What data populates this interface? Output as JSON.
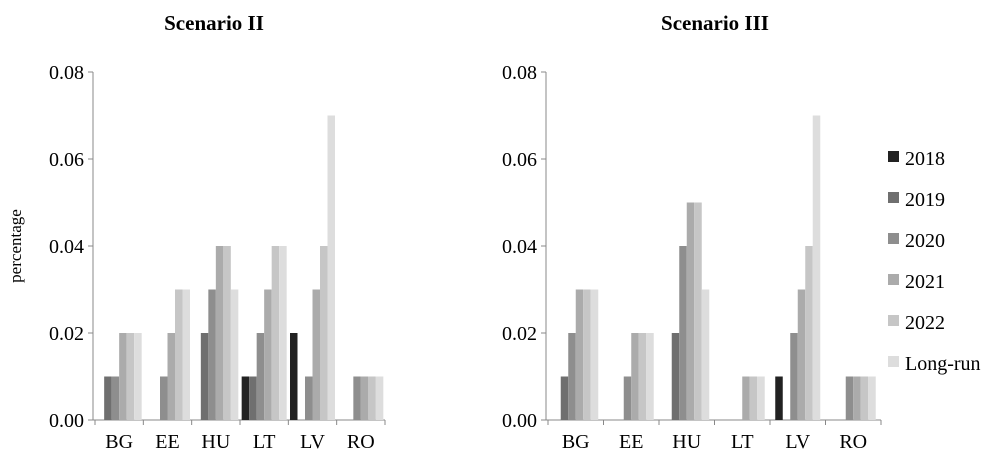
{
  "chart_data": [
    {
      "type": "bar",
      "title": "Scenario II",
      "xlabel": "",
      "ylabel": "percentage",
      "ylim": [
        0,
        0.08
      ],
      "yticks": [
        "0.00",
        "0.02",
        "0.04",
        "0.06",
        "0.08"
      ],
      "categories": [
        "BG",
        "EE",
        "HU",
        "LT",
        "LV",
        "RO"
      ],
      "grid": false,
      "series": [
        {
          "name": "2018",
          "color": "#222222",
          "values": [
            0,
            0,
            0,
            0.01,
            0.02,
            0
          ]
        },
        {
          "name": "2019",
          "color": "#6f6f6f",
          "values": [
            0.01,
            0,
            0.02,
            0.01,
            0,
            0
          ]
        },
        {
          "name": "2020",
          "color": "#8e8e8e",
          "values": [
            0.01,
            0.01,
            0.03,
            0.02,
            0.01,
            0.01
          ]
        },
        {
          "name": "2021",
          "color": "#ababab",
          "values": [
            0.02,
            0.02,
            0.04,
            0.03,
            0.03,
            0.01
          ]
        },
        {
          "name": "2022",
          "color": "#c6c6c6",
          "values": [
            0.02,
            0.03,
            0.04,
            0.04,
            0.04,
            0.01
          ]
        },
        {
          "name": "Long-run",
          "color": "#dddddd",
          "values": [
            0.02,
            0.03,
            0.03,
            0.04,
            0.07,
            0.01
          ]
        }
      ]
    },
    {
      "type": "bar",
      "title": "Scenario III",
      "xlabel": "",
      "ylabel": "",
      "ylim": [
        0,
        0.08
      ],
      "yticks": [
        "0.00",
        "0.02",
        "0.04",
        "0.06",
        "0.08"
      ],
      "categories": [
        "BG",
        "EE",
        "HU",
        "LT",
        "LV",
        "RO"
      ],
      "grid": false,
      "legend_position": "right",
      "series": [
        {
          "name": "2018",
          "color": "#222222",
          "values": [
            0,
            0,
            0,
            0,
            0.01,
            0
          ]
        },
        {
          "name": "2019",
          "color": "#6f6f6f",
          "values": [
            0.01,
            0,
            0.02,
            0,
            0,
            0
          ]
        },
        {
          "name": "2020",
          "color": "#8e8e8e",
          "values": [
            0.02,
            0.01,
            0.04,
            0,
            0.02,
            0.01
          ]
        },
        {
          "name": "2021",
          "color": "#ababab",
          "values": [
            0.03,
            0.02,
            0.05,
            0.01,
            0.03,
            0.01
          ]
        },
        {
          "name": "2022",
          "color": "#c6c6c6",
          "values": [
            0.03,
            0.02,
            0.05,
            0.01,
            0.04,
            0.01
          ]
        },
        {
          "name": "Long-run",
          "color": "#dddddd",
          "values": [
            0.03,
            0.02,
            0.03,
            0.01,
            0.07,
            0.01
          ]
        }
      ]
    }
  ]
}
